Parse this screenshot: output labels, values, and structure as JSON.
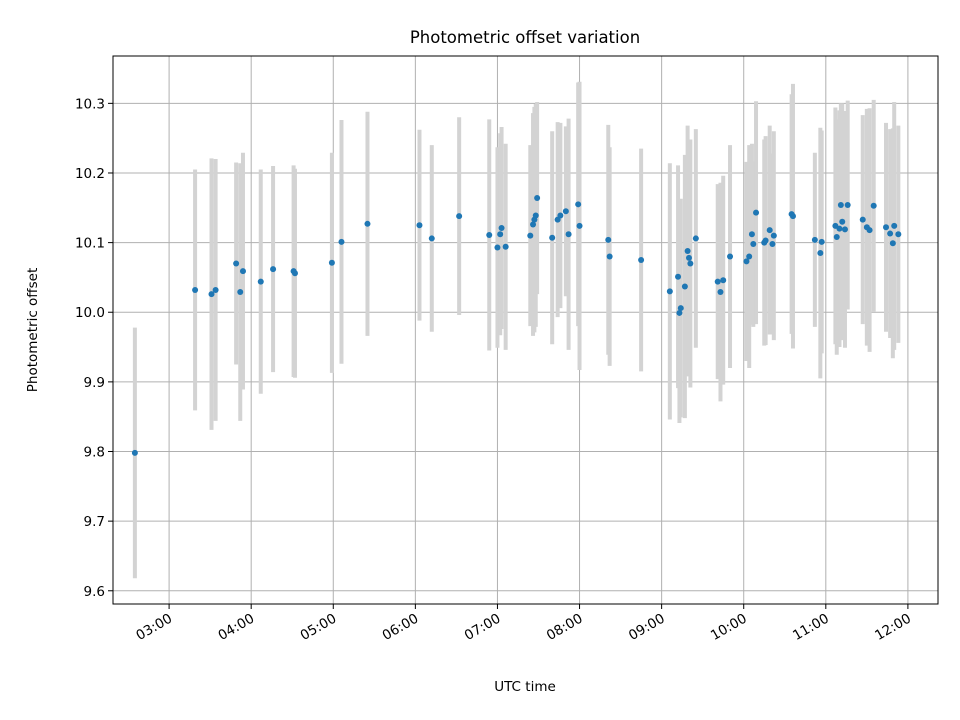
{
  "chart_data": {
    "type": "scatter",
    "title": "Photometric offset variation",
    "xlabel": "UTC time",
    "ylabel": "Photometric offset",
    "x_ticks": [
      "03:00",
      "04:00",
      "05:00",
      "06:00",
      "07:00",
      "08:00",
      "09:00",
      "10:00",
      "11:00",
      "12:00"
    ],
    "y_ticks": [
      "9.6",
      "9.7",
      "9.8",
      "9.9",
      "10.0",
      "10.1",
      "10.2",
      "10.3"
    ],
    "xlim": [
      "02:19",
      "12:22"
    ],
    "ylim": [
      9.581,
      10.368
    ],
    "grid": true,
    "colors": {
      "point": "#1f77b4",
      "errorbar": "#d3d3d3",
      "grid": "#b0b0b0"
    },
    "x": [
      "02:35",
      "03:19",
      "03:31",
      "03:34",
      "03:49",
      "03:52",
      "03:54",
      "04:07",
      "04:16",
      "04:31",
      "04:32",
      "04:59",
      "05:06",
      "05:25",
      "06:03",
      "06:12",
      "06:32",
      "06:54",
      "07:00",
      "07:02",
      "07:03",
      "07:06",
      "07:24",
      "07:26",
      "07:27",
      "07:28",
      "07:29",
      "07:40",
      "07:44",
      "07:46",
      "07:50",
      "07:52",
      "07:59",
      "08:00",
      "08:21",
      "08:22",
      "08:45",
      "09:06",
      "09:12",
      "09:13",
      "09:14",
      "09:17",
      "09:19",
      "09:20",
      "09:21",
      "09:25",
      "09:41",
      "09:43",
      "09:45",
      "09:50",
      "10:02",
      "10:04",
      "10:06",
      "10:07",
      "10:09",
      "10:15",
      "10:16",
      "10:19",
      "10:21",
      "10:22",
      "10:35",
      "10:36",
      "10:52",
      "10:56",
      "10:57",
      "11:07",
      "11:08",
      "11:10",
      "11:11",
      "11:12",
      "11:14",
      "11:16",
      "11:27",
      "11:30",
      "11:32",
      "11:35",
      "11:44",
      "11:47",
      "11:49",
      "11:50",
      "11:53"
    ],
    "y": [
      9.798,
      10.032,
      10.026,
      10.032,
      10.07,
      10.029,
      10.059,
      10.044,
      10.062,
      10.059,
      10.056,
      10.071,
      10.101,
      10.127,
      10.125,
      10.106,
      10.138,
      10.111,
      10.093,
      10.112,
      10.121,
      10.094,
      10.11,
      10.126,
      10.133,
      10.139,
      10.164,
      10.107,
      10.133,
      10.139,
      10.145,
      10.112,
      10.155,
      10.124,
      10.104,
      10.08,
      10.075,
      10.03,
      10.051,
      9.999,
      10.006,
      10.037,
      10.088,
      10.078,
      10.07,
      10.106,
      10.044,
      10.029,
      10.046,
      10.08,
      10.073,
      10.08,
      10.112,
      10.098,
      10.143,
      10.1,
      10.103,
      10.118,
      10.098,
      10.11,
      10.141,
      10.138,
      10.104,
      10.085,
      10.101,
      10.124,
      10.108,
      10.12,
      10.154,
      10.13,
      10.119,
      10.154,
      10.133,
      10.122,
      10.118,
      10.153,
      10.122,
      10.113,
      10.099,
      10.124,
      10.112
    ],
    "yerr": [
      0.18,
      0.173,
      0.195,
      0.188,
      0.145,
      0.185,
      0.17,
      0.161,
      0.148,
      0.152,
      0.15,
      0.158,
      0.175,
      0.161,
      0.137,
      0.134,
      0.142,
      0.166,
      0.144,
      0.145,
      0.145,
      0.148,
      0.13,
      0.16,
      0.162,
      0.16,
      0.138,
      0.153,
      0.14,
      0.133,
      0.122,
      0.166,
      0.175,
      0.207,
      0.165,
      0.157,
      0.16,
      0.184,
      0.16,
      0.158,
      0.157,
      0.189,
      0.18,
      0.17,
      0.178,
      0.157,
      0.14,
      0.157,
      0.15,
      0.16,
      0.143,
      0.16,
      0.13,
      0.119,
      0.16,
      0.148,
      0.15,
      0.15,
      0.13,
      0.15,
      0.172,
      0.19,
      0.125,
      0.18,
      0.16,
      0.17,
      0.169,
      0.17,
      0.146,
      0.17,
      0.17,
      0.15,
      0.15,
      0.17,
      0.175,
      0.152,
      0.15,
      0.15,
      0.165,
      0.178,
      0.156
    ]
  }
}
